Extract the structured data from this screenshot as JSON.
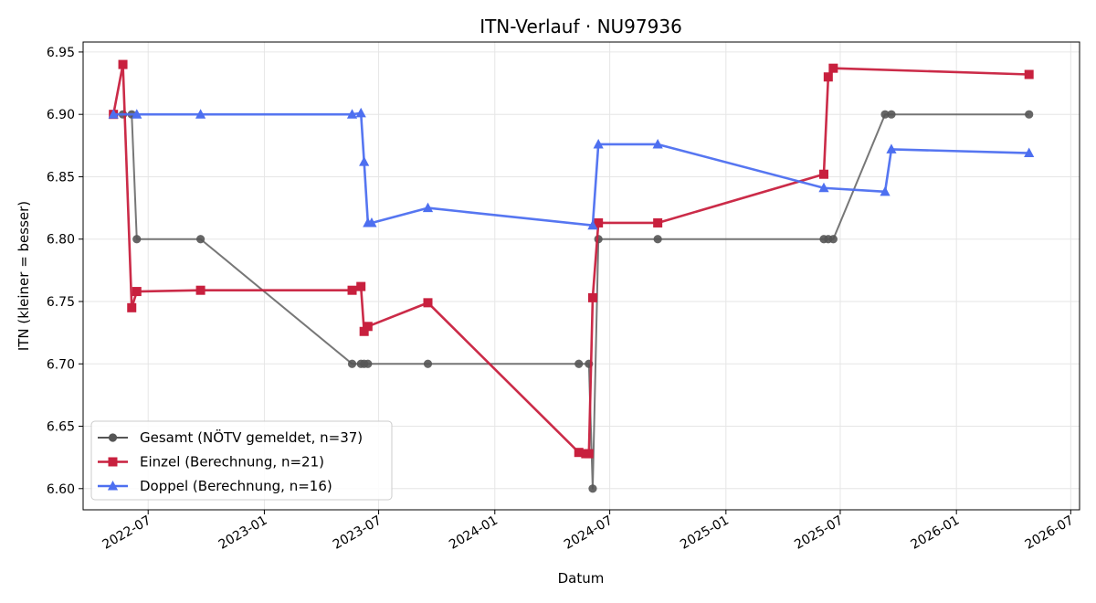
{
  "chart_data": {
    "type": "line",
    "title": "ITN-Verlauf · NU97936",
    "xlabel": "Datum",
    "ylabel": "ITN  (kleiner = besser)",
    "xlim": [
      "2022-03-20",
      "2026-07-15"
    ],
    "ylim": [
      6.583,
      6.958
    ],
    "x_ticks": [
      {
        "date": "2022-07-01",
        "label": "2022-07"
      },
      {
        "date": "2023-01-01",
        "label": "2023-01"
      },
      {
        "date": "2023-07-01",
        "label": "2023-07"
      },
      {
        "date": "2024-01-01",
        "label": "2024-01"
      },
      {
        "date": "2024-07-01",
        "label": "2024-07"
      },
      {
        "date": "2025-01-01",
        "label": "2025-01"
      },
      {
        "date": "2025-07-01",
        "label": "2025-07"
      },
      {
        "date": "2026-01-01",
        "label": "2026-01"
      },
      {
        "date": "2026-07-01",
        "label": "2026-07"
      }
    ],
    "y_ticks": [
      6.6,
      6.65,
      6.7,
      6.75,
      6.8,
      6.85,
      6.9,
      6.95
    ],
    "y_tick_labels": [
      "6.60",
      "6.65",
      "6.70",
      "6.75",
      "6.80",
      "6.85",
      "6.90",
      "6.95"
    ],
    "grid": true,
    "legend_position": "lower-left",
    "series": [
      {
        "name": "Gesamt (NÖTV gemeldet, n=37)",
        "color": "#555555",
        "marker": "circle",
        "points": [
          {
            "x": "2022-05-07",
            "y": 6.9
          },
          {
            "x": "2022-05-22",
            "y": 6.9
          },
          {
            "x": "2022-06-05",
            "y": 6.9
          },
          {
            "x": "2022-06-13",
            "y": 6.8
          },
          {
            "x": "2022-09-22",
            "y": 6.8
          },
          {
            "x": "2023-05-20",
            "y": 6.7
          },
          {
            "x": "2023-06-03",
            "y": 6.7
          },
          {
            "x": "2023-06-08",
            "y": 6.7
          },
          {
            "x": "2023-06-14",
            "y": 6.7
          },
          {
            "x": "2023-09-17",
            "y": 6.7
          },
          {
            "x": "2024-05-13",
            "y": 6.7
          },
          {
            "x": "2024-05-29",
            "y": 6.7
          },
          {
            "x": "2024-06-04",
            "y": 6.6
          },
          {
            "x": "2024-06-13",
            "y": 6.8
          },
          {
            "x": "2024-09-15",
            "y": 6.8
          },
          {
            "x": "2025-06-05",
            "y": 6.8
          },
          {
            "x": "2025-06-12",
            "y": 6.8
          },
          {
            "x": "2025-06-20",
            "y": 6.8
          },
          {
            "x": "2025-09-10",
            "y": 6.9
          },
          {
            "x": "2025-09-20",
            "y": 6.9
          },
          {
            "x": "2026-04-26",
            "y": 6.9
          }
        ]
      },
      {
        "name": "Einzel (Berechnung, n=21)",
        "color": "#c8203e",
        "marker": "square",
        "points": [
          {
            "x": "2022-05-07",
            "y": 6.9
          },
          {
            "x": "2022-05-22",
            "y": 6.94
          },
          {
            "x": "2022-06-05",
            "y": 6.745
          },
          {
            "x": "2022-06-13",
            "y": 6.758
          },
          {
            "x": "2022-09-22",
            "y": 6.759
          },
          {
            "x": "2023-05-20",
            "y": 6.759
          },
          {
            "x": "2023-06-03",
            "y": 6.762
          },
          {
            "x": "2023-06-08",
            "y": 6.726
          },
          {
            "x": "2023-06-14",
            "y": 6.73
          },
          {
            "x": "2023-09-17",
            "y": 6.749
          },
          {
            "x": "2024-05-13",
            "y": 6.629
          },
          {
            "x": "2024-05-24",
            "y": 6.628
          },
          {
            "x": "2024-05-29",
            "y": 6.628
          },
          {
            "x": "2024-06-04",
            "y": 6.753
          },
          {
            "x": "2024-06-13",
            "y": 6.813
          },
          {
            "x": "2024-09-15",
            "y": 6.813
          },
          {
            "x": "2025-06-05",
            "y": 6.852
          },
          {
            "x": "2025-06-12",
            "y": 6.93
          },
          {
            "x": "2025-06-20",
            "y": 6.937
          },
          {
            "x": "2026-04-26",
            "y": 6.932
          }
        ]
      },
      {
        "name": "Doppel (Berechnung, n=16)",
        "color": "#4d6ff0",
        "marker": "triangle",
        "points": [
          {
            "x": "2022-05-07",
            "y": 6.9
          },
          {
            "x": "2022-06-13",
            "y": 6.9
          },
          {
            "x": "2022-09-22",
            "y": 6.9
          },
          {
            "x": "2023-05-20",
            "y": 6.9
          },
          {
            "x": "2023-06-03",
            "y": 6.901
          },
          {
            "x": "2023-06-08",
            "y": 6.862
          },
          {
            "x": "2023-06-14",
            "y": 6.813
          },
          {
            "x": "2023-06-20",
            "y": 6.813
          },
          {
            "x": "2023-09-17",
            "y": 6.825
          },
          {
            "x": "2024-06-04",
            "y": 6.811
          },
          {
            "x": "2024-06-13",
            "y": 6.876
          },
          {
            "x": "2024-09-15",
            "y": 6.876
          },
          {
            "x": "2025-06-05",
            "y": 6.841
          },
          {
            "x": "2025-09-10",
            "y": 6.838
          },
          {
            "x": "2025-09-20",
            "y": 6.872
          },
          {
            "x": "2026-04-26",
            "y": 6.869
          }
        ]
      }
    ]
  }
}
